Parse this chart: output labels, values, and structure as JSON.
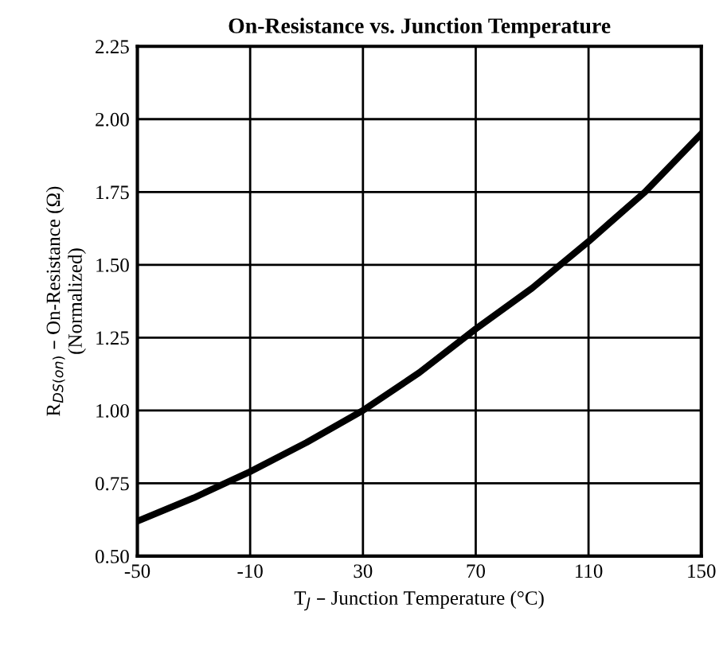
{
  "chart_data": {
    "type": "line",
    "title": "On-Resistance vs. Junction Temperature",
    "xlabel": "T$_{J}$ – Junction Temperature (°C)",
    "ylabel": "R$_{DS(on)}$ – On-Resistance (Ω)\n(Normalized)",
    "x": [
      -50,
      -30,
      -10,
      10,
      30,
      50,
      70,
      90,
      110,
      130,
      150
    ],
    "series": [
      {
        "color": "#000000",
        "values": [
          0.62,
          0.7,
          0.79,
          0.89,
          1.0,
          1.13,
          1.28,
          1.42,
          1.58,
          1.75,
          1.95
        ]
      }
    ],
    "xlim": [
      -50,
      150
    ],
    "xticks": [
      -50,
      -10,
      30,
      70,
      110,
      150
    ],
    "ylim": [
      0.5,
      2.25
    ],
    "yticks": [
      {
        "value": 0.5,
        "label": "0.50"
      },
      {
        "value": 0.75,
        "label": "0.75"
      },
      {
        "value": 1.0,
        "label": "1.00"
      },
      {
        "value": 1.25,
        "label": "1.25"
      },
      {
        "value": 1.5,
        "label": "1.50"
      },
      {
        "value": 1.75,
        "label": "1.75"
      },
      {
        "value": 2.0,
        "label": "2.00"
      },
      {
        "value": 2.25,
        "label": "2.25"
      }
    ],
    "grid": true,
    "marker": "none",
    "line_style": "solid"
  }
}
